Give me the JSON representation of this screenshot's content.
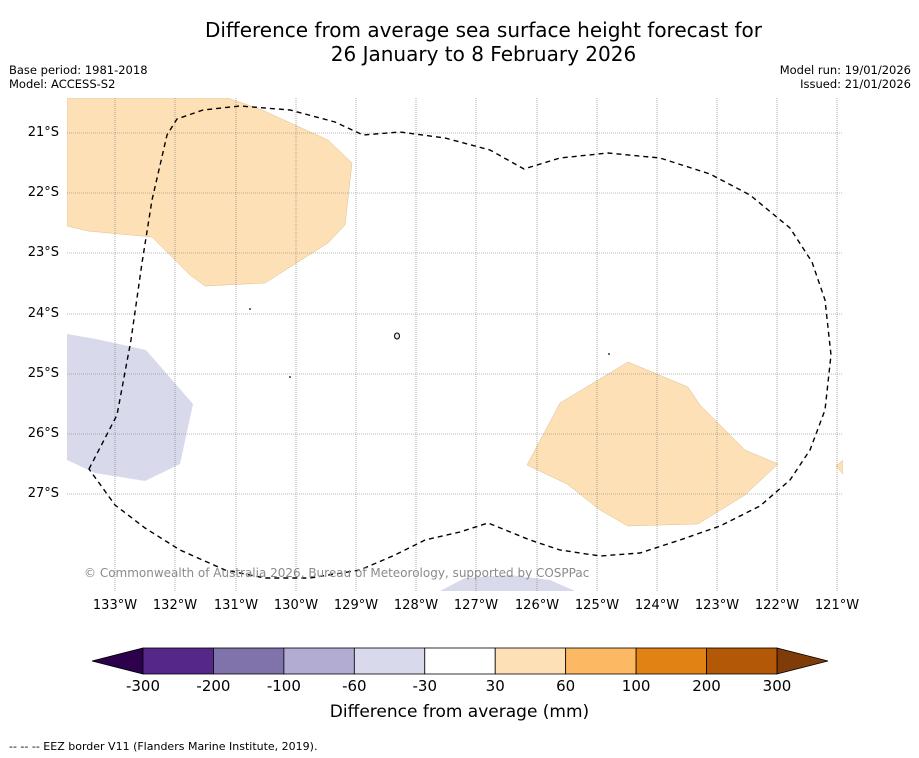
{
  "title_line1": "Difference from average sea surface height forecast for",
  "title_line2": "26 January to 8 February 2026",
  "base_period": "Base period: 1981-2018",
  "model": "Model: ACCESS-S2",
  "model_run": "Model run: 19/01/2026",
  "issued": "Issued: 21/01/2026",
  "latitude_labels": [
    "21°S",
    "22°S",
    "23°S",
    "24°S",
    "25°S",
    "26°S",
    "27°S"
  ],
  "longitude_labels": [
    "133°W",
    "132°W",
    "131°W",
    "130°W",
    "129°W",
    "128°W",
    "127°W",
    "126°W",
    "125°W",
    "124°W",
    "123°W",
    "122°W",
    "121°W"
  ],
  "copyright": "© Commonwealth of Australia 2026, Bureau of Meteorology, supported by COSPPac",
  "colorbar": {
    "ticks": [
      "-300",
      "-200",
      "-100",
      "-60",
      "-30",
      "30",
      "60",
      "100",
      "200",
      "300"
    ],
    "colors": [
      "#542788",
      "#8073ac",
      "#b2abd2",
      "#d8daeb",
      "#ffffff",
      "#fee0b6",
      "#fdb863",
      "#e08214",
      "#b35806"
    ],
    "under_color": "#2d004b",
    "over_color": "#7f3b08",
    "label": "Difference from average (mm)"
  },
  "legend_eez": "--  --  -- EEZ border V11 (Flanders Marine Institute, 2019).",
  "map_colors": {
    "positive_30_60": "#fee0b6",
    "negative_60_30": "#d8daeb",
    "eez_line": "#000000"
  }
}
